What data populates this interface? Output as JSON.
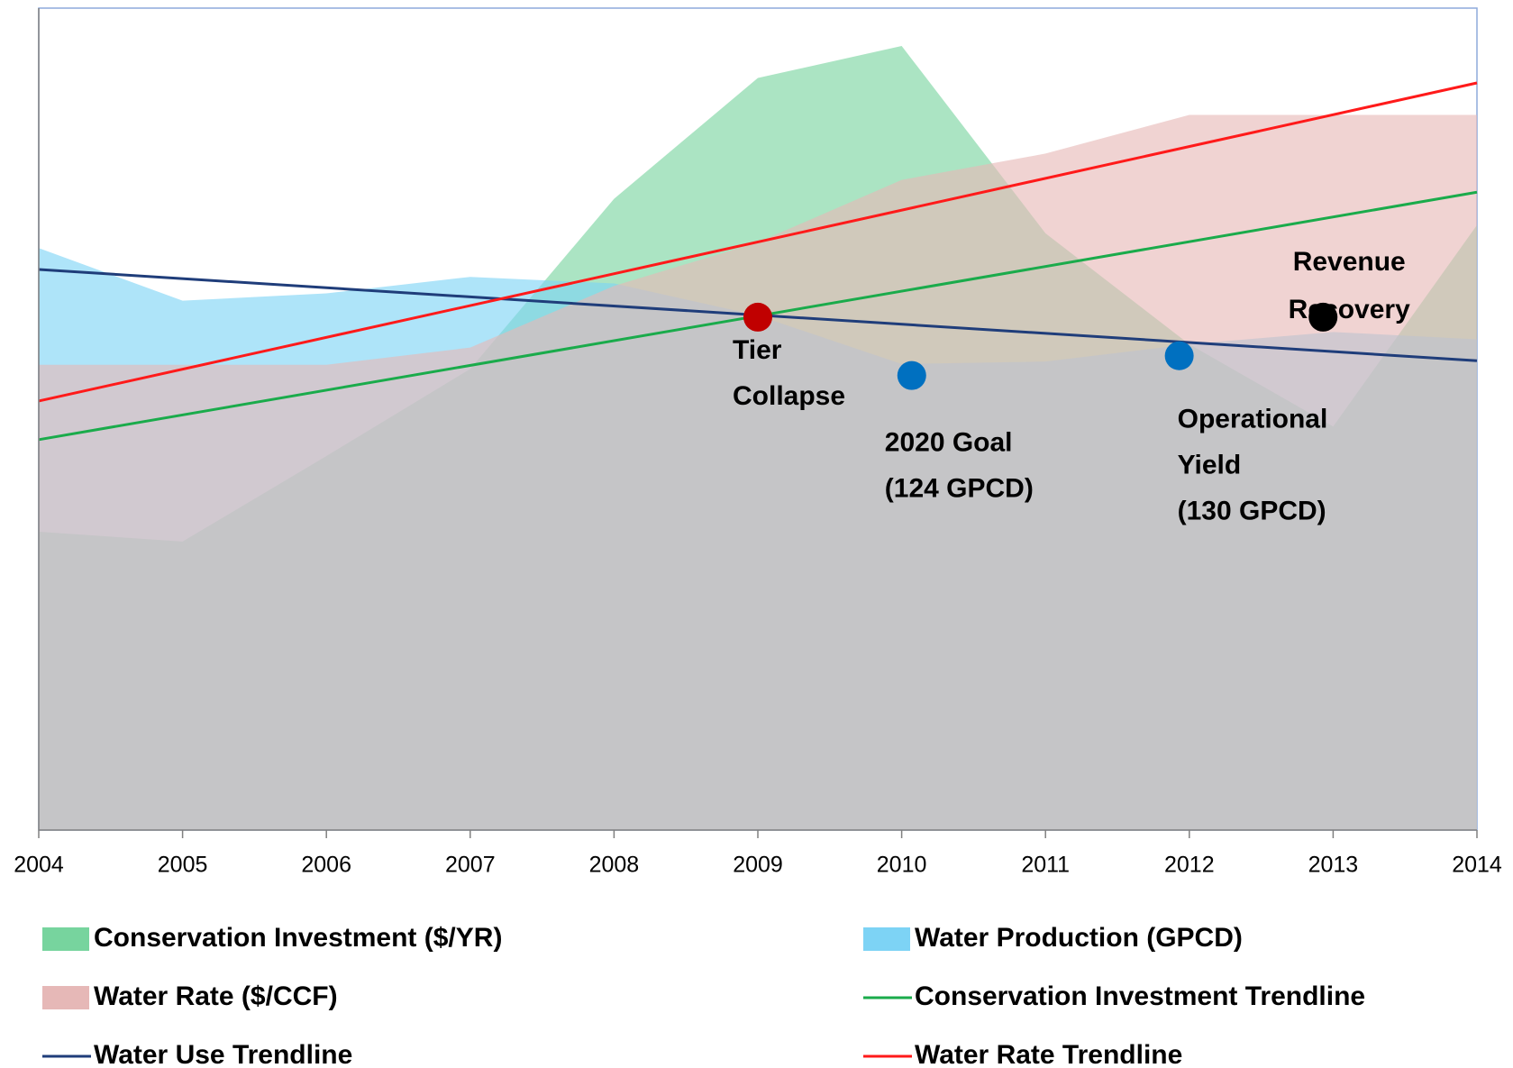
{
  "chart_data": {
    "type": "area",
    "x": [
      2004,
      2005,
      2006,
      2007,
      2008,
      2009,
      2010,
      2011,
      2012,
      2013,
      2014
    ],
    "xlim": [
      2004,
      2014
    ],
    "xticks": [
      2004,
      2005,
      2006,
      2007,
      2008,
      2009,
      2010,
      2011,
      2012,
      2013,
      2014
    ],
    "ylim": [
      0,
      100
    ],
    "series": [
      {
        "name": "Conservation Investment ($/YR)",
        "type": "area",
        "color": "#77d49e",
        "values": [
          36.3,
          35.1,
          45.5,
          56.1,
          76.8,
          91.5,
          95.4,
          72.6,
          59.1,
          49.1,
          73.6
        ]
      },
      {
        "name": "Water Production (GPCD)",
        "type": "area",
        "color": "#7dd3f5",
        "values": [
          70.8,
          64.4,
          65.3,
          67.3,
          66.5,
          62.6,
          56.7,
          57.0,
          59.1,
          60.6,
          59.7
        ]
      },
      {
        "name": "Water Rate ($/CCF)",
        "type": "area",
        "color": "#e6b8b7",
        "values": [
          56.6,
          56.6,
          56.6,
          58.7,
          66.2,
          71.5,
          79.1,
          82.3,
          87.0,
          87.0,
          87.0
        ]
      },
      {
        "name": "Conservation Investment Trendline",
        "type": "line",
        "color": "#1aab4b",
        "x": [
          2004,
          2014
        ],
        "values": [
          47.5,
          77.6
        ]
      },
      {
        "name": "Water Use Trendline",
        "type": "line",
        "color": "#1f3d7a",
        "x": [
          2004,
          2014
        ],
        "values": [
          68.2,
          57.1
        ]
      },
      {
        "name": "Water Rate Trendline",
        "type": "line",
        "color": "#ff1a1a",
        "x": [
          2004,
          2014
        ],
        "values": [
          52.2,
          90.9
        ]
      }
    ],
    "points": [
      {
        "label_lines": [
          "Tier",
          "Collapse"
        ],
        "x": 2009,
        "y": 62.4,
        "color": "#c00000"
      },
      {
        "label_lines": [
          "2020 Goal",
          "(124 GPCD)"
        ],
        "x": 2010.07,
        "y": 55.3,
        "color": "#0070c0"
      },
      {
        "label_lines": [
          "Operational",
          "Yield",
          "(130 GPCD)"
        ],
        "x": 2011.93,
        "y": 57.7,
        "color": "#0070c0"
      },
      {
        "label_lines": [
          "Revenue",
          "Recovery"
        ],
        "x": 2012.93,
        "y": 62.4,
        "color": "#000000"
      }
    ]
  }
}
